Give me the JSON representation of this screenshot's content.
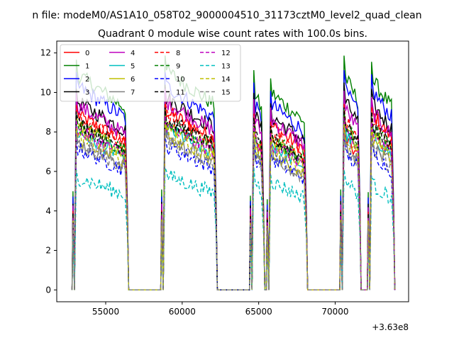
{
  "chart_data": {
    "type": "line",
    "suptitle": "n file: modeM0/AS1A10_058T02_9000004510_31173cztM0_level2_quad_clean",
    "title": "Quadrant 0 module wise count rates with 100.0s bins.",
    "xlabel": "",
    "ylabel": "",
    "x_offset_label": "+3.63e8",
    "xlim": [
      51800,
      74800
    ],
    "ylim": [
      -0.6,
      12.6
    ],
    "xticks": [
      55000,
      60000,
      65000,
      70000
    ],
    "xtick_labels": [
      "55000",
      "60000",
      "65000",
      "70000"
    ],
    "yticks": [
      0,
      2,
      4,
      6,
      8,
      10,
      12
    ],
    "ytick_labels": [
      "0",
      "2",
      "4",
      "6",
      "8",
      "10",
      "12"
    ],
    "grid": false,
    "legend_location": "upper left",
    "legend_columns": 4,
    "segments": [
      {
        "start": 52800,
        "end": 56500
      },
      {
        "start": 58600,
        "end": 62300
      },
      {
        "start": 64400,
        "end": 65400
      },
      {
        "start": 65500,
        "end": 68200
      },
      {
        "start": 70300,
        "end": 71700
      },
      {
        "start": 72100,
        "end": 73900
      }
    ],
    "segment_shape": {
      "start_ratio": 0.45,
      "dip_value": 0.0,
      "end_ratio": 0.3
    },
    "series": [
      {
        "name": "0",
        "color": "#ff0000",
        "dash": "solid",
        "values": [
          9.0,
          9.2,
          8.3,
          8.5,
          8.0,
          9.2
        ]
      },
      {
        "name": "1",
        "color": "#008000",
        "dash": "solid",
        "values": [
          11.1,
          11.3,
          10.6,
          10.2,
          11.3,
          11.0
        ]
      },
      {
        "name": "2",
        "color": "#0000ff",
        "dash": "solid",
        "values": [
          10.5,
          10.5,
          10.0,
          9.6,
          10.6,
          10.4
        ]
      },
      {
        "name": "3",
        "color": "#000000",
        "dash": "solid",
        "values": [
          9.7,
          9.9,
          9.5,
          9.0,
          10.0,
          9.7
        ]
      },
      {
        "name": "4",
        "color": "#bf00bf",
        "dash": "solid",
        "values": [
          9.5,
          9.7,
          9.2,
          8.8,
          9.6,
          9.3
        ]
      },
      {
        "name": "5",
        "color": "#00bfbf",
        "dash": "solid",
        "values": [
          8.1,
          8.3,
          7.9,
          7.5,
          8.3,
          8.1
        ]
      },
      {
        "name": "6",
        "color": "#bfbf00",
        "dash": "solid",
        "values": [
          8.4,
          8.6,
          8.1,
          7.8,
          8.6,
          8.4
        ]
      },
      {
        "name": "7",
        "color": "#808080",
        "dash": "solid",
        "values": [
          7.6,
          7.8,
          7.4,
          7.0,
          7.7,
          7.5
        ]
      },
      {
        "name": "8",
        "color": "#ff0000",
        "dash": "dashed",
        "values": [
          8.9,
          9.0,
          8.5,
          8.1,
          9.0,
          8.8
        ]
      },
      {
        "name": "9",
        "color": "#008000",
        "dash": "dashed",
        "values": [
          8.5,
          8.7,
          8.2,
          7.9,
          8.7,
          8.5
        ]
      },
      {
        "name": "10",
        "color": "#0000ff",
        "dash": "dashed",
        "values": [
          7.3,
          7.4,
          7.2,
          6.8,
          7.3,
          7.2
        ]
      },
      {
        "name": "11",
        "color": "#000000",
        "dash": "dashed",
        "values": [
          8.6,
          8.8,
          8.3,
          7.9,
          8.8,
          8.6
        ]
      },
      {
        "name": "12",
        "color": "#bf00bf",
        "dash": "dashed",
        "values": [
          8.2,
          8.4,
          8.0,
          7.6,
          8.3,
          8.1
        ]
      },
      {
        "name": "13",
        "color": "#00bfbf",
        "dash": "dashed",
        "values": [
          5.8,
          5.9,
          5.9,
          5.6,
          5.8,
          5.5
        ]
      },
      {
        "name": "14",
        "color": "#bfbf00",
        "dash": "dashed",
        "values": [
          7.8,
          8.0,
          7.6,
          7.2,
          8.0,
          7.8
        ]
      },
      {
        "name": "15",
        "color": "#808080",
        "dash": "dashed",
        "values": [
          7.5,
          7.7,
          7.3,
          6.9,
          7.6,
          7.4
        ]
      }
    ]
  }
}
